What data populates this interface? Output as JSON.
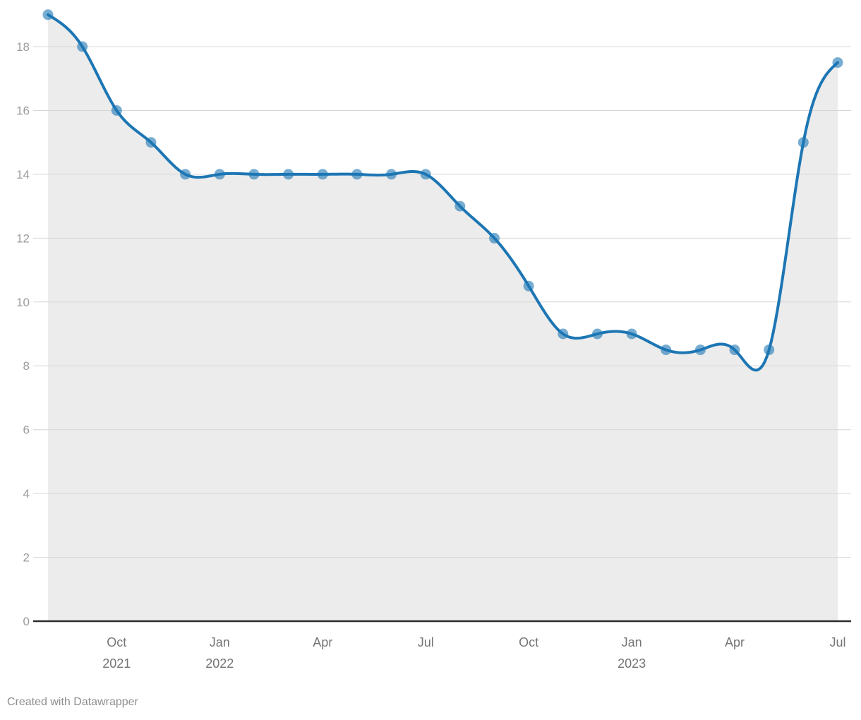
{
  "footer": {
    "attribution": "Created with Datawrapper"
  },
  "chart_data": {
    "type": "area",
    "title": "",
    "xlabel": "",
    "ylabel": "",
    "curve": "natural",
    "grid": true,
    "legend": "none",
    "x": [
      "Aug 2021",
      "Sep 2021",
      "Oct 2021",
      "Nov 2021",
      "Dec 2021",
      "Jan 2022",
      "Feb 2022",
      "Mar 2022",
      "Apr 2022",
      "May 2022",
      "Jun 2022",
      "Jul 2022",
      "Aug 2022",
      "Sep 2022",
      "Oct 2022",
      "Nov 2022",
      "Dec 2022",
      "Jan 2023",
      "Feb 2023",
      "Mar 2023",
      "Apr 2023",
      "May 2023",
      "Jun 2023",
      "Jul 2023"
    ],
    "values": [
      19,
      18,
      16,
      15,
      14,
      14,
      14,
      14,
      14,
      14,
      14,
      14,
      13,
      12,
      10.5,
      9,
      9,
      9,
      8.5,
      8.5,
      8.5,
      8.5,
      15,
      17.5
    ],
    "ylim": [
      0,
      19.5
    ],
    "yticks": [
      0,
      2,
      4,
      6,
      8,
      10,
      12,
      14,
      16,
      18
    ],
    "xticks": [
      {
        "index": 2,
        "month": "Oct",
        "year": "2021"
      },
      {
        "index": 5,
        "month": "Jan",
        "year": "2022"
      },
      {
        "index": 8,
        "month": "Apr",
        "year": ""
      },
      {
        "index": 11,
        "month": "Jul",
        "year": ""
      },
      {
        "index": 14,
        "month": "Oct",
        "year": ""
      },
      {
        "index": 17,
        "month": "Jan",
        "year": "2023"
      },
      {
        "index": 20,
        "month": "Apr",
        "year": ""
      },
      {
        "index": 23,
        "month": "Jul",
        "year": ""
      }
    ],
    "colors": {
      "line": "#1d76b4",
      "marker": "rgba(29,118,180,0.6)",
      "area_fill": "#ececec",
      "gridline": "#d6d6d6",
      "baseline": "#2b2b2b",
      "y_label": "#9b9b9b",
      "x_label": "#757575",
      "footer_text": "#8e8e8e"
    }
  }
}
